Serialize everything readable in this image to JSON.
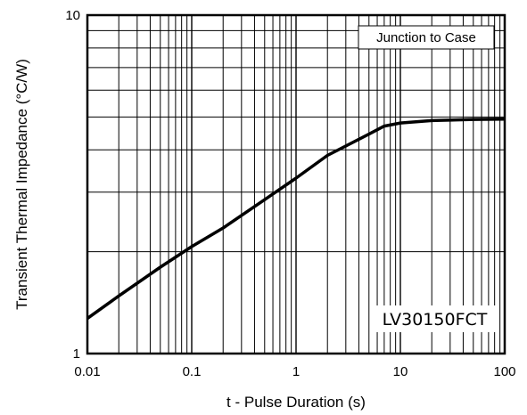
{
  "chart_data": {
    "type": "line",
    "title": "",
    "xlabel": "t - Pulse Duration (s)",
    "ylabel": "Transient Thermal Impedance (°C/W)",
    "x_scale": "log",
    "y_scale": "log",
    "xlim": [
      0.01,
      100
    ],
    "ylim": [
      1,
      10
    ],
    "x_ticks": [
      0.01,
      0.1,
      1,
      10,
      100
    ],
    "x_tick_labels": [
      "0.01",
      "0.1",
      "1",
      "10",
      "100"
    ],
    "y_ticks": [
      1,
      10
    ],
    "y_tick_labels": [
      "1",
      "10"
    ],
    "grid": true,
    "legend": {
      "text": "Junction to Case",
      "placement": "top-right"
    },
    "annotation": "LV30150FCT",
    "series": [
      {
        "x": [
          0.01,
          0.02,
          0.05,
          0.1,
          0.2,
          0.5,
          1,
          2,
          5,
          7,
          10,
          20,
          50,
          100
        ],
        "y": [
          1.27,
          1.48,
          1.8,
          2.07,
          2.35,
          2.85,
          3.3,
          3.85,
          4.45,
          4.7,
          4.8,
          4.88,
          4.92,
          4.93
        ]
      }
    ]
  }
}
